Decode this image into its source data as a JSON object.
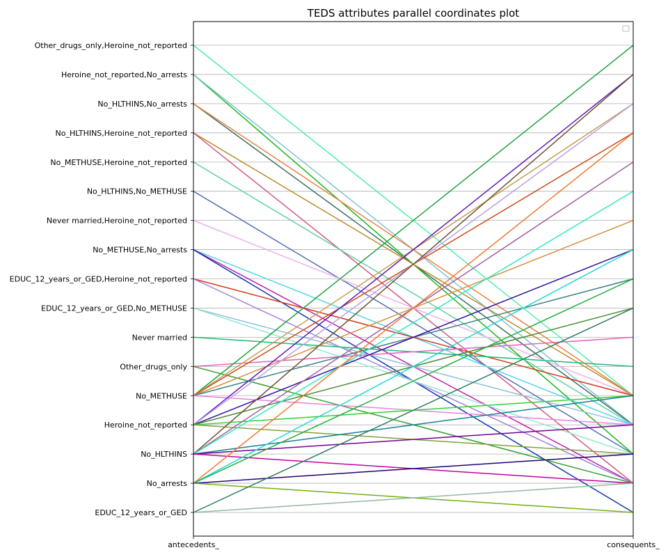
{
  "chart_data": {
    "type": "parallel_coordinates",
    "title": "TEDS attributes parallel coordinates plot",
    "axes": [
      "antecedents_",
      "consequents_"
    ],
    "categories": [
      "EDUC_12_years_or_GED",
      "No_arrests",
      "No_HLTHINS",
      "Heroine_not_reported",
      "No_METHUSE",
      "Other_drugs_only",
      "Never married",
      "EDUC_12_years_or_GED,No_METHUSE",
      "EDUC_12_years_or_GED,Heroine_not_reported",
      "No_METHUSE,No_arrests",
      "Never married,Heroine_not_reported",
      "No_HLTHINS,No_METHUSE",
      "No_METHUSE,Heroine_not_reported",
      "No_HLTHINS,Heroine_not_reported",
      "No_HLTHINS,No_arrests",
      "Heroine_not_reported,No_arrests",
      "Other_drugs_only,Heroine_not_reported"
    ],
    "grid": true,
    "legend": {
      "position": "top-right",
      "entries": []
    },
    "lines": [
      {
        "a": 16,
        "c": 4,
        "color": "#4deeaa"
      },
      {
        "a": 15,
        "c": 2,
        "color": "#18b818"
      },
      {
        "a": 15,
        "c": 3,
        "color": "#7ec4d4"
      },
      {
        "a": 14,
        "c": 3,
        "color": "#3a6e62"
      },
      {
        "a": 14,
        "c": 4,
        "color": "#ec8040"
      },
      {
        "a": 13,
        "c": 4,
        "color": "#ba8c2c"
      },
      {
        "a": 13,
        "c": 1,
        "color": "#d05a80"
      },
      {
        "a": 12,
        "c": 3,
        "color": "#5ecfa4"
      },
      {
        "a": 11,
        "c": 2,
        "color": "#5070b8"
      },
      {
        "a": 10,
        "c": 4,
        "color": "#f0b0ec"
      },
      {
        "a": 9,
        "c": 3,
        "color": "#52d4ec"
      },
      {
        "a": 9,
        "c": 1,
        "color": "#c020a4"
      },
      {
        "a": 9,
        "c": 0,
        "color": "#1038b0"
      },
      {
        "a": 8,
        "c": 4,
        "color": "#d03818"
      },
      {
        "a": 8,
        "c": 1,
        "color": "#a080d8"
      },
      {
        "a": 7,
        "c": 3,
        "color": "#90c0e0"
      },
      {
        "a": 7,
        "c": 2,
        "color": "#90e8d0"
      },
      {
        "a": 6,
        "c": 5,
        "color": "#20b878"
      },
      {
        "a": 5,
        "c": 6,
        "color": "#e060c0"
      },
      {
        "a": 5,
        "c": 1,
        "color": "#30a030"
      },
      {
        "a": 4,
        "c": 16,
        "color": "#20a040"
      },
      {
        "a": 4,
        "c": 14,
        "color": "#c0a050"
      },
      {
        "a": 4,
        "c": 13,
        "color": "#d04818"
      },
      {
        "a": 4,
        "c": 10,
        "color": "#d89040"
      },
      {
        "a": 4,
        "c": 8,
        "color": "#3a8080"
      },
      {
        "a": 4,
        "c": 3,
        "color": "#e880e0"
      },
      {
        "a": 3,
        "c": 15,
        "color": "#6018b8"
      },
      {
        "a": 3,
        "c": 14,
        "color": "#b8a0e8"
      },
      {
        "a": 3,
        "c": 9,
        "color": "#3010a0"
      },
      {
        "a": 3,
        "c": 7,
        "color": "#4a8a30"
      },
      {
        "a": 3,
        "c": 4,
        "color": "#30d030"
      },
      {
        "a": 3,
        "c": 2,
        "color": "#80a040"
      },
      {
        "a": 2,
        "c": 15,
        "color": "#705030"
      },
      {
        "a": 2,
        "c": 12,
        "color": "#a060a0"
      },
      {
        "a": 2,
        "c": 11,
        "color": "#30e8c0"
      },
      {
        "a": 2,
        "c": 4,
        "color": "#108090"
      },
      {
        "a": 2,
        "c": 3,
        "color": "#700090"
      },
      {
        "a": 2,
        "c": 1,
        "color": "#c000a0"
      },
      {
        "a": 1,
        "c": 13,
        "color": "#f07830"
      },
      {
        "a": 1,
        "c": 9,
        "color": "#20d8d0"
      },
      {
        "a": 1,
        "c": 8,
        "color": "#20b040"
      },
      {
        "a": 1,
        "c": 2,
        "color": "#200070"
      },
      {
        "a": 1,
        "c": 0,
        "color": "#70b010"
      },
      {
        "a": 0,
        "c": 7,
        "color": "#2a7a5a"
      },
      {
        "a": 0,
        "c": 1,
        "color": "#90b8a0"
      }
    ]
  }
}
